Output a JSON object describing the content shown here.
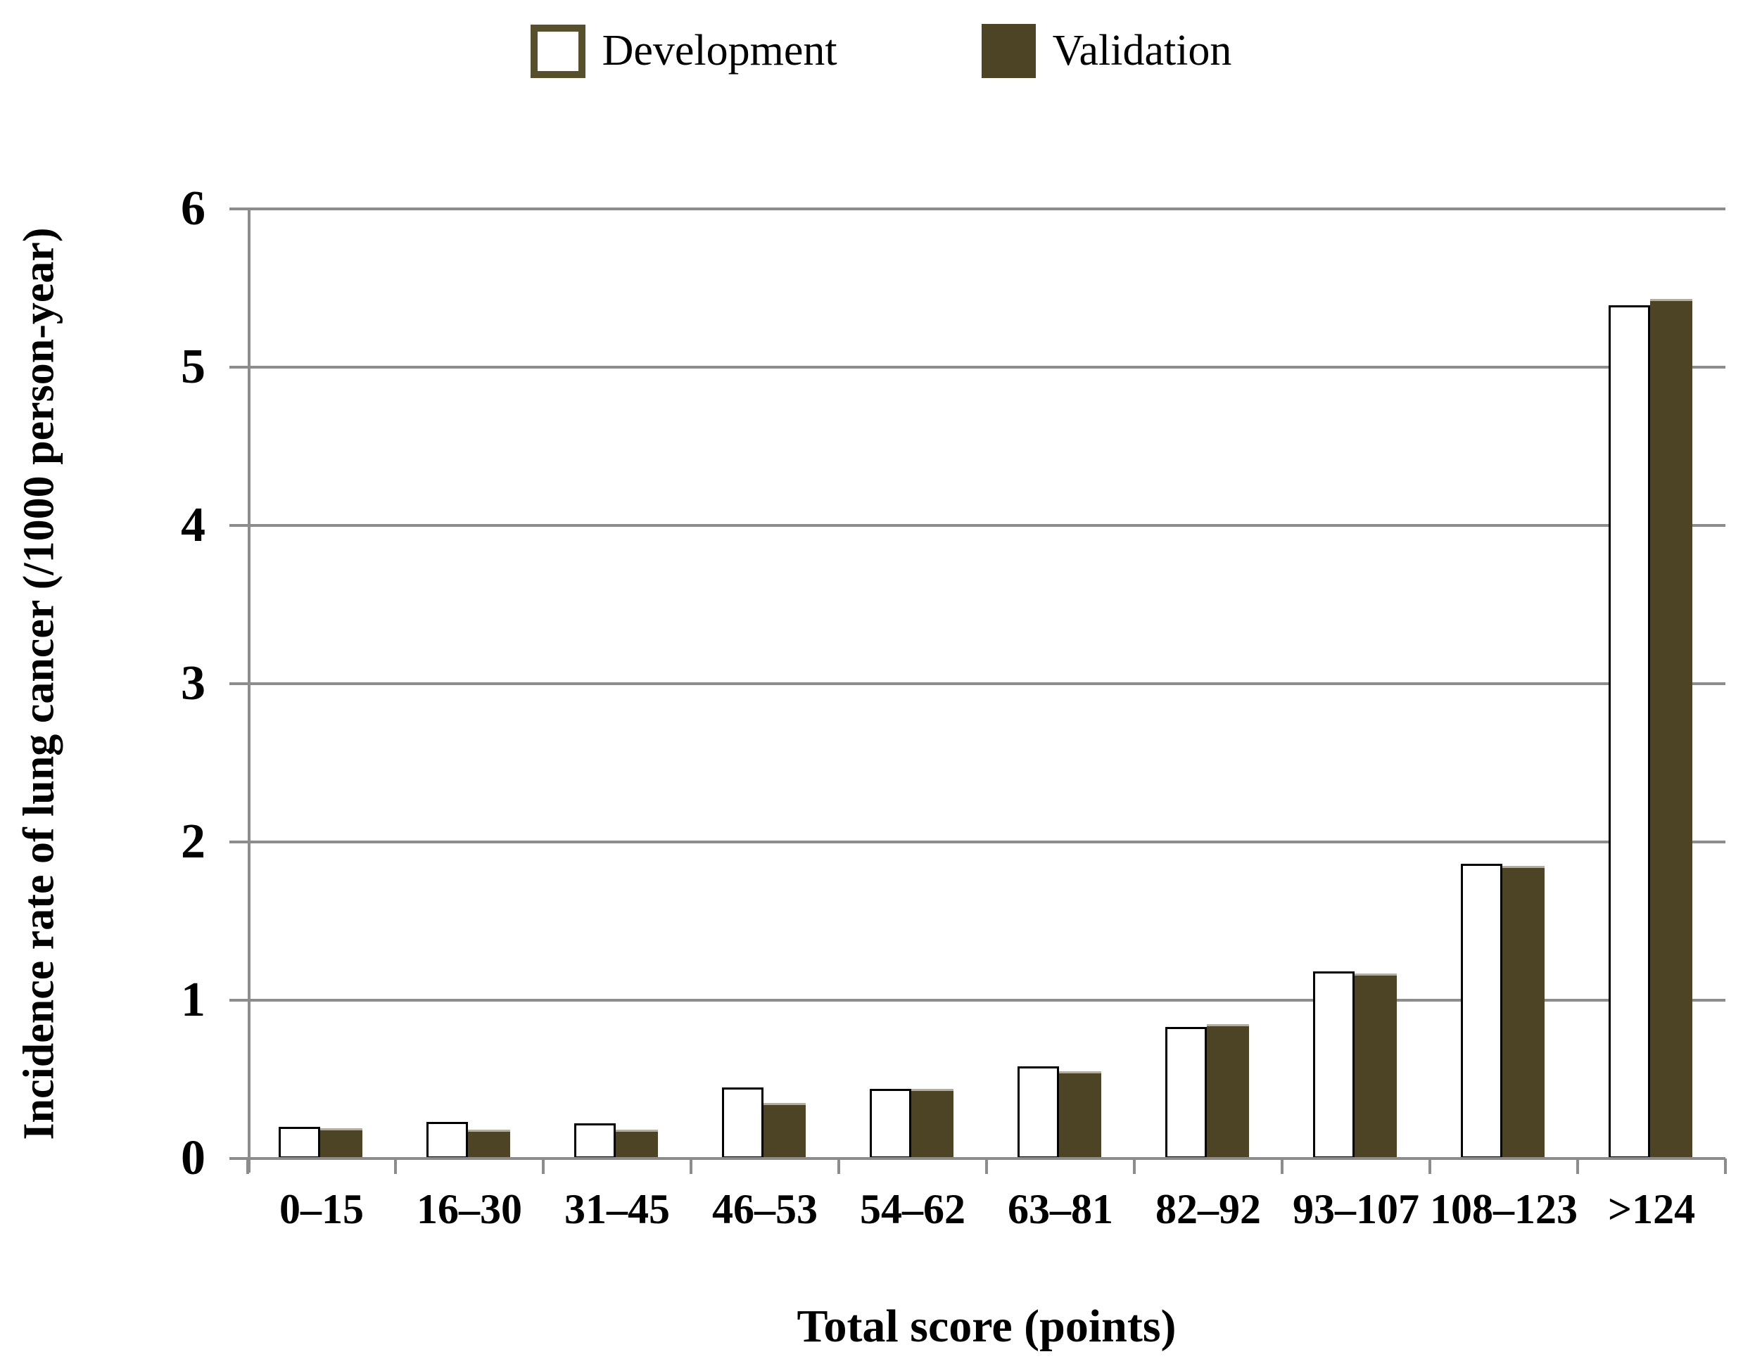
{
  "chart_data": {
    "type": "bar",
    "title": "",
    "xlabel": "Total score (points)",
    "ylabel": "Incidence rate of lung cancer (/1000 person-year)",
    "ylim": [
      0,
      6
    ],
    "yticks": [
      0,
      1,
      2,
      3,
      4,
      5,
      6
    ],
    "grid": "horizontal",
    "legend_position": "top-center",
    "categories": [
      "0–15",
      "16–30",
      "31–45",
      "46–53",
      "54–62",
      "63–81",
      "82–92",
      "93–107",
      "108–123",
      ">124"
    ],
    "series": [
      {
        "name": "Development",
        "style": "white-outlined",
        "fill": "#FFFFFF",
        "border": "#000000",
        "values": [
          0.2,
          0.23,
          0.22,
          0.45,
          0.44,
          0.58,
          0.83,
          1.18,
          1.86,
          5.39
        ]
      },
      {
        "name": "Validation",
        "style": "solid",
        "fill": "#4D4426",
        "border": "#B1AEA1",
        "values": [
          0.19,
          0.18,
          0.18,
          0.35,
          0.44,
          0.55,
          0.85,
          1.17,
          1.85,
          5.43
        ]
      }
    ],
    "colors": {
      "gridline": "#8C8C8C",
      "axis": "#8C8C8C",
      "legend_outline": "#57502C",
      "text": "#000000"
    }
  }
}
